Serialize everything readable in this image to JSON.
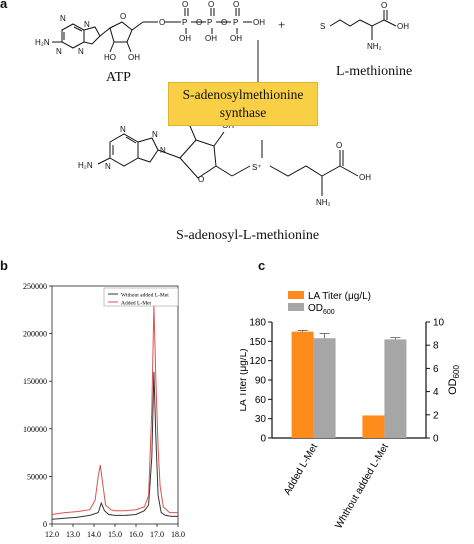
{
  "panel_a": {
    "letter": "a",
    "reactant1": "ATP",
    "plus": "+",
    "reactant2": "L-methionine",
    "enzyme_line1": "S-adenosylmethionine",
    "enzyme_line2": "synthase",
    "product": "S-adenosyl-L-methionine",
    "atoms": {
      "NH2": "NH₂",
      "H2N": "H₂N",
      "N": "N",
      "O": "O",
      "OH": "OH",
      "HO": "HO",
      "P": "P",
      "S": "S",
      "S_plus": "S⁺"
    }
  },
  "panel_b": {
    "letter": "b",
    "legend": [
      "Without added L-Met",
      "Added L-Met"
    ]
  },
  "panel_c": {
    "letter": "c",
    "legend": [
      "LA Titer (μg/L)",
      "OD600"
    ],
    "left_axis_label": "LA Titer (μg/L)",
    "right_axis_label": "OD600"
  },
  "chart_data": [
    {
      "type": "line",
      "panel": "b",
      "title": "",
      "xlabel": "",
      "ylabel": "",
      "xlim": [
        12.0,
        18.0
      ],
      "ylim": [
        0,
        250000
      ],
      "x_ticks": [
        "12.0",
        "13.0",
        "14.0",
        "15.0",
        "16.0",
        "17.0",
        "18.0"
      ],
      "y_ticks": [
        "0",
        "50000",
        "100000",
        "150000",
        "200000",
        "250000"
      ],
      "colors": {
        "Without added L-Met": "#333333",
        "Added L-Met": "#d9534f"
      },
      "series": [
        {
          "name": "Without added L-Met",
          "x": [
            12.0,
            12.6,
            13.2,
            13.8,
            14.2,
            14.35,
            14.5,
            14.7,
            15.0,
            15.5,
            16.0,
            16.4,
            16.6,
            16.75,
            16.85,
            16.95,
            17.05,
            17.2,
            17.4,
            17.7,
            18.0
          ],
          "y": [
            5000,
            6000,
            7000,
            9000,
            12000,
            22000,
            14000,
            10000,
            9000,
            9000,
            10000,
            14000,
            20000,
            70000,
            160000,
            90000,
            30000,
            12000,
            9000,
            8000,
            8000
          ]
        },
        {
          "name": "Added L-Met",
          "x": [
            12.0,
            12.6,
            13.2,
            13.8,
            14.05,
            14.2,
            14.3,
            14.4,
            14.55,
            14.8,
            15.0,
            15.5,
            16.0,
            16.4,
            16.6,
            16.75,
            16.85,
            16.95,
            17.05,
            17.15,
            17.3,
            17.6,
            18.0
          ],
          "y": [
            10000,
            12000,
            13000,
            15000,
            25000,
            50000,
            62000,
            45000,
            20000,
            15000,
            14000,
            14000,
            15000,
            18000,
            30000,
            120000,
            230000,
            150000,
            80000,
            40000,
            18000,
            12000,
            12000
          ]
        }
      ]
    },
    {
      "type": "bar",
      "panel": "c",
      "title": "",
      "categories": [
        "Added L-Met",
        "Whthout added L-Met"
      ],
      "left_axis": {
        "label": "LA Titer (μg/L)",
        "ylim": [
          0,
          180
        ],
        "ticks": [
          "0",
          "30",
          "60",
          "90",
          "120",
          "150",
          "180"
        ]
      },
      "right_axis": {
        "label": "OD600",
        "ylim": [
          0,
          10
        ],
        "ticks": [
          "0",
          "2",
          "4",
          "6",
          "8",
          "10"
        ]
      },
      "legend_position": "top-left",
      "colors": {
        "LA Titer (μg/L)": "#ff8c1a",
        "OD600": "#a6a6a6"
      },
      "series": [
        {
          "name": "LA Titer (μg/L)",
          "axis": "left",
          "values": [
            165,
            35
          ],
          "errors": [
            2,
            0
          ]
        },
        {
          "name": "OD600",
          "axis": "right",
          "values": [
            8.6,
            8.5
          ],
          "errors": [
            0.4,
            0.15
          ]
        }
      ]
    }
  ]
}
